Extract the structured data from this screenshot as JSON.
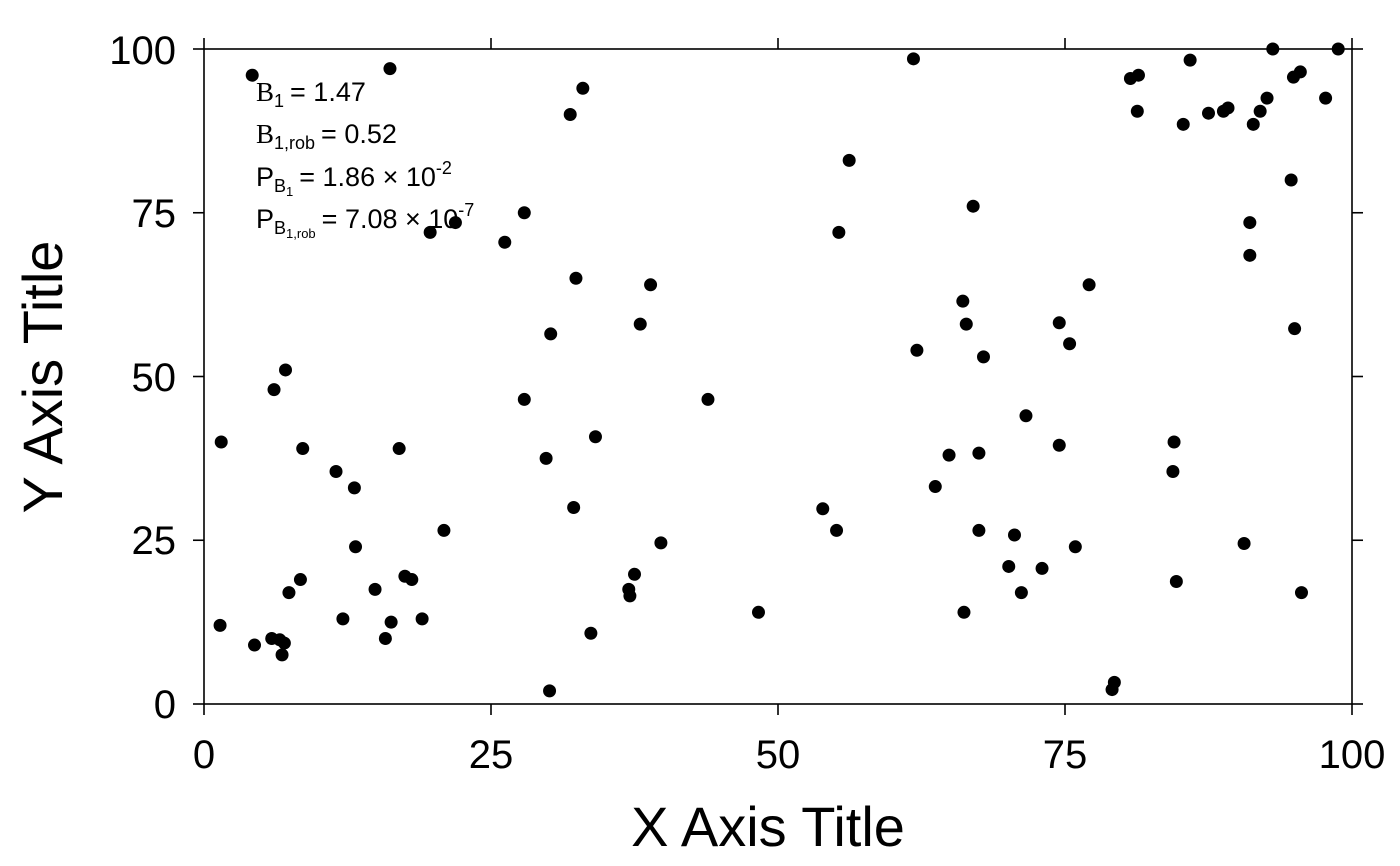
{
  "chart_data": {
    "type": "scatter",
    "xlabel": "X Axis Title",
    "ylabel": "Y Axis Title",
    "xlim": [
      0,
      100
    ],
    "ylim": [
      0,
      100
    ],
    "xticks": [
      "0",
      "25",
      "50",
      "75",
      "100"
    ],
    "yticks": [
      "0",
      "25",
      "50",
      "75",
      "100"
    ],
    "grid": false,
    "marker_color": "#000000",
    "annotation": {
      "b1": {
        "label": "B",
        "sub": "1",
        "value": "= 1.47"
      },
      "b1rob": {
        "label": "B",
        "sub": "1,rob",
        "value": "= 0.52"
      },
      "pb1": {
        "label": "P",
        "sub_base": "B",
        "sub_sub": "1",
        "value": "= 1.86 × 10",
        "exp": "-2"
      },
      "pb1rob": {
        "label": "P",
        "sub_base": "B",
        "sub_sub": "1,rob",
        "value": "= 7.08 × 10",
        "exp": "-7"
      }
    },
    "points": [
      [
        1.5,
        40
      ],
      [
        1.4,
        12
      ],
      [
        4.2,
        96
      ],
      [
        4.4,
        9
      ],
      [
        5.9,
        10
      ],
      [
        6.1,
        48
      ],
      [
        6.6,
        9.8
      ],
      [
        6.8,
        7.5
      ],
      [
        7.0,
        9.3
      ],
      [
        7.1,
        51
      ],
      [
        7.4,
        17
      ],
      [
        8.4,
        19
      ],
      [
        8.6,
        39
      ],
      [
        11.5,
        35.5
      ],
      [
        12.1,
        13
      ],
      [
        13.1,
        33
      ],
      [
        13.2,
        24
      ],
      [
        14.9,
        17.5
      ],
      [
        15.8,
        10
      ],
      [
        16.2,
        97
      ],
      [
        16.3,
        12.5
      ],
      [
        17.0,
        39
      ],
      [
        17.5,
        19.5
      ],
      [
        18.1,
        19
      ],
      [
        19.0,
        13
      ],
      [
        19.7,
        72
      ],
      [
        20.9,
        26.5
      ],
      [
        21.9,
        73.5
      ],
      [
        26.2,
        70.5
      ],
      [
        27.9,
        75
      ],
      [
        27.9,
        46.5
      ],
      [
        29.8,
        37.5
      ],
      [
        30.1,
        2
      ],
      [
        30.2,
        56.5
      ],
      [
        31.9,
        90
      ],
      [
        32.2,
        30
      ],
      [
        32.4,
        65
      ],
      [
        33.0,
        94
      ],
      [
        33.7,
        10.8
      ],
      [
        34.1,
        40.8
      ],
      [
        37.0,
        17.5
      ],
      [
        37.1,
        16.5
      ],
      [
        37.5,
        19.8
      ],
      [
        38.0,
        58
      ],
      [
        38.9,
        64
      ],
      [
        39.8,
        24.6
      ],
      [
        43.9,
        46.5
      ],
      [
        48.3,
        14
      ],
      [
        53.9,
        29.8
      ],
      [
        55.1,
        26.5
      ],
      [
        55.3,
        72
      ],
      [
        56.2,
        83
      ],
      [
        61.8,
        98.5
      ],
      [
        62.1,
        54
      ],
      [
        63.7,
        33.2
      ],
      [
        64.9,
        38
      ],
      [
        66.1,
        61.5
      ],
      [
        66.2,
        14
      ],
      [
        66.4,
        58
      ],
      [
        67.0,
        76
      ],
      [
        67.5,
        38.3
      ],
      [
        67.5,
        26.5
      ],
      [
        67.9,
        53
      ],
      [
        70.1,
        21
      ],
      [
        70.6,
        25.8
      ],
      [
        71.2,
        17
      ],
      [
        71.6,
        44
      ],
      [
        73.0,
        20.7
      ],
      [
        74.5,
        58.2
      ],
      [
        74.5,
        39.5
      ],
      [
        75.4,
        55
      ],
      [
        75.9,
        24
      ],
      [
        77.1,
        64
      ],
      [
        79.1,
        2.2
      ],
      [
        79.3,
        3.3
      ],
      [
        80.7,
        95.5
      ],
      [
        81.3,
        90.5
      ],
      [
        81.4,
        96
      ],
      [
        84.4,
        35.5
      ],
      [
        84.5,
        40
      ],
      [
        84.7,
        18.7
      ],
      [
        85.3,
        88.5
      ],
      [
        85.9,
        98.3
      ],
      [
        87.5,
        90.2
      ],
      [
        88.8,
        90.5
      ],
      [
        89.2,
        91
      ],
      [
        90.6,
        24.5
      ],
      [
        91.1,
        73.5
      ],
      [
        91.1,
        68.5
      ],
      [
        91.4,
        88.5
      ],
      [
        92.0,
        90.5
      ],
      [
        92.6,
        92.5
      ],
      [
        93.1,
        100
      ],
      [
        94.7,
        80
      ],
      [
        94.9,
        95.7
      ],
      [
        95.0,
        57.3
      ],
      [
        95.5,
        96.5
      ],
      [
        95.6,
        17
      ],
      [
        97.7,
        92.5
      ],
      [
        98.8,
        100
      ]
    ]
  }
}
